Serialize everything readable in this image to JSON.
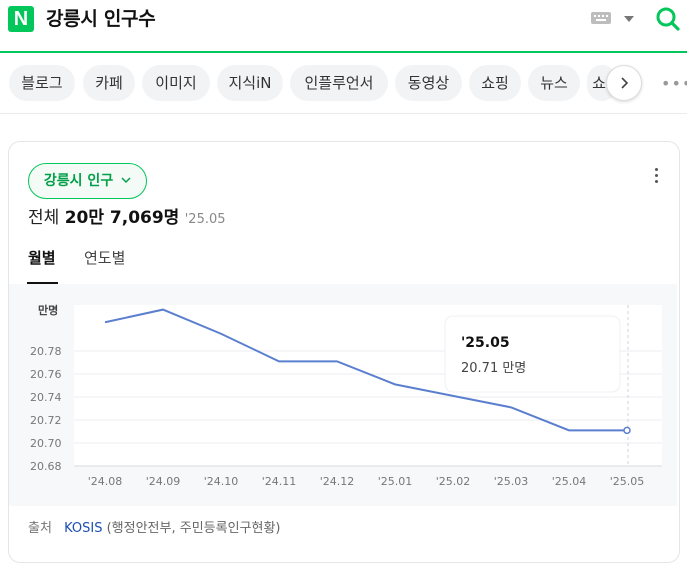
{
  "header": {
    "logo_text": "N",
    "query": "강릉시 인구수",
    "brand_color": "#03c75a"
  },
  "tabs": [
    "블로그",
    "카페",
    "이미지",
    "지식iN",
    "인플루언서",
    "동영상",
    "쇼핑",
    "뉴스",
    "쇼"
  ],
  "card": {
    "chip_label": "강릉시 인구",
    "total_label": "전체",
    "total_value": "20만 7,069명",
    "total_date": "'25.05",
    "subtabs": [
      "월별",
      "연도별"
    ],
    "source_label": "출처",
    "source_link": "KOSIS",
    "source_detail": "(행정안전부, 주민등록인구현황)"
  },
  "tooltip": {
    "date": "'25.05",
    "value": "20.71 만명"
  },
  "chart_data": {
    "type": "line",
    "ylabel": "만명",
    "categories": [
      "'24.08",
      "'24.09",
      "'24.10",
      "'24.11",
      "'24.12",
      "'25.01",
      "'25.02",
      "'25.03",
      "'25.04",
      "'25.05"
    ],
    "values": [
      20.805,
      20.816,
      20.795,
      20.771,
      20.771,
      20.751,
      20.741,
      20.731,
      20.711,
      20.711
    ],
    "yticks": [
      "20.68",
      "20.70",
      "20.72",
      "20.74",
      "20.76",
      "20.78"
    ],
    "ylim": [
      20.68,
      20.82
    ],
    "line_color": "#5b7fcf",
    "grid": true,
    "highlight_index": 9
  }
}
